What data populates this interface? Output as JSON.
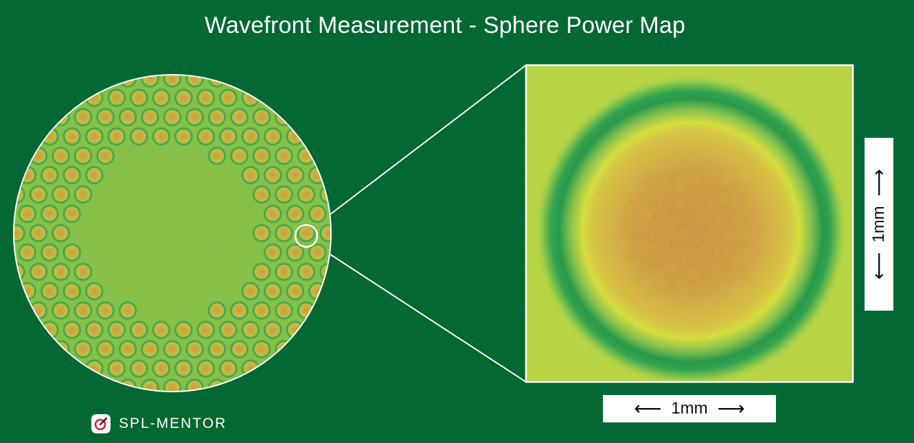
{
  "title": "Wavefront Measurement - Sphere Power Map",
  "scale": {
    "horizontal_label": "1mm",
    "vertical_label": "1mm",
    "left_arrow": "⟵",
    "right_arrow": "⟶"
  },
  "brand": {
    "name": "SPL-MENTOR"
  },
  "colors": {
    "background": "#036833",
    "map_base": "#7fbe3f",
    "lenslet_ring": "#1f9a49",
    "lenslet_core": "#c9a93a",
    "zoom_core": "#cf9a3c",
    "zoom_ring_outer": "#d8dd3a"
  }
}
